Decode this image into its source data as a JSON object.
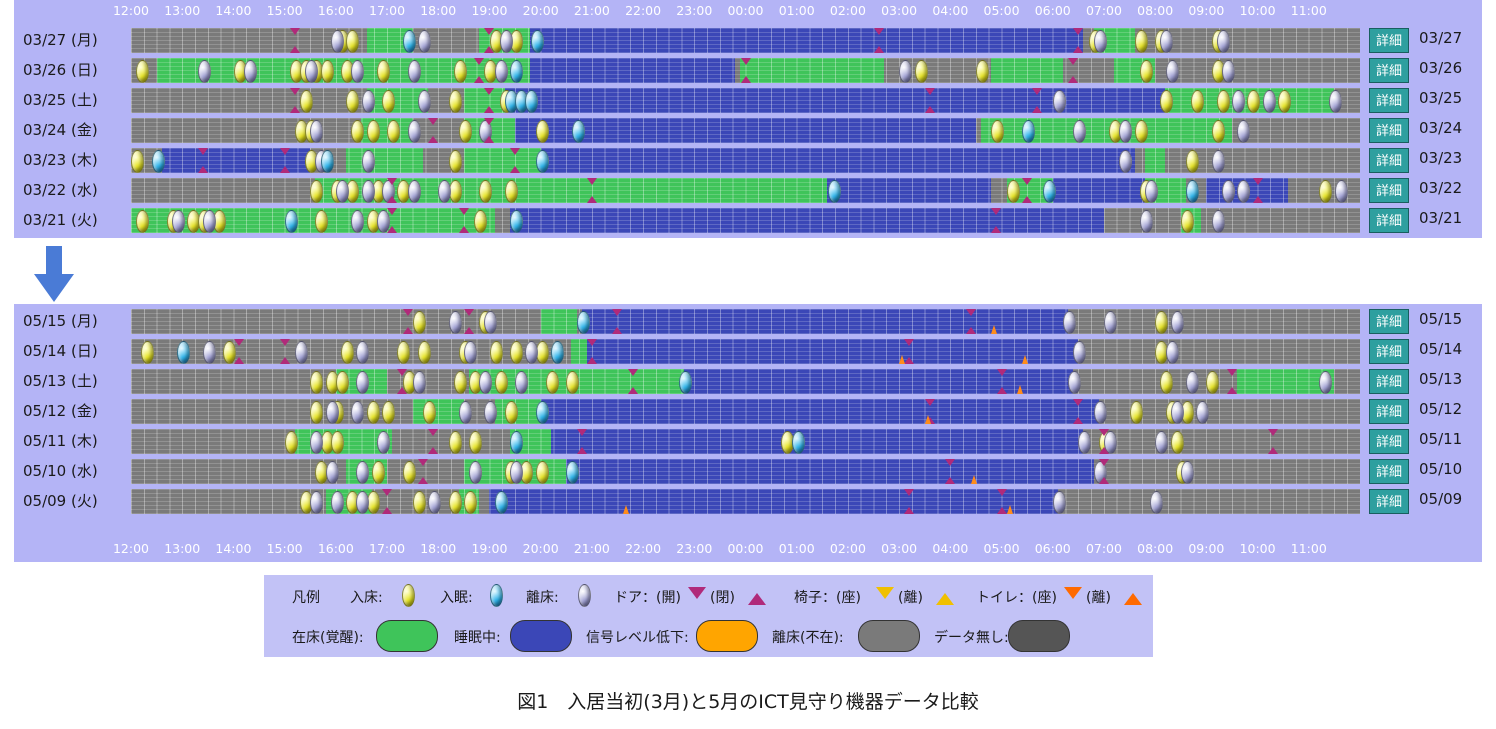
{
  "time_axis": [
    "12:00",
    "13:00",
    "14:00",
    "15:00",
    "16:00",
    "17:00",
    "18:00",
    "19:00",
    "20:00",
    "21:00",
    "22:00",
    "23:00",
    "00:00",
    "01:00",
    "02:00",
    "03:00",
    "04:00",
    "05:00",
    "06:00",
    "07:00",
    "08:00",
    "09:00",
    "10:00",
    "11:00"
  ],
  "detail_label": "詳細",
  "march_rows": [
    {
      "label": "03/27 (月)",
      "date": "03/27"
    },
    {
      "label": "03/26 (日)",
      "date": "03/26"
    },
    {
      "label": "03/25 (土)",
      "date": "03/25"
    },
    {
      "label": "03/24 (金)",
      "date": "03/24"
    },
    {
      "label": "03/23 (木)",
      "date": "03/23"
    },
    {
      "label": "03/22 (水)",
      "date": "03/22"
    },
    {
      "label": "03/21 (火)",
      "date": "03/21"
    }
  ],
  "may_rows": [
    {
      "label": "05/15 (月)",
      "date": "05/15"
    },
    {
      "label": "05/14 (日)",
      "date": "05/14"
    },
    {
      "label": "05/13 (土)",
      "date": "05/13"
    },
    {
      "label": "05/12 (金)",
      "date": "05/12"
    },
    {
      "label": "05/11 (木)",
      "date": "05/11"
    },
    {
      "label": "05/10 (水)",
      "date": "05/10"
    },
    {
      "label": "05/09 (火)",
      "date": "05/09"
    }
  ],
  "legend": {
    "title": "凡例",
    "in_bed": "入床:",
    "asleep": "入眠:",
    "left_bed": "離床:",
    "door": "ドア：(開)",
    "door_close": "(閉)",
    "chair": "椅子：(座)",
    "chair_leave": "(離)",
    "toilet": "トイレ：(座)",
    "toilet_leave": "(離)",
    "state_awake": "在床(覚醒):",
    "state_sleep": "睡眠中:",
    "state_signal": "信号レベル低下:",
    "state_absent": "離床(不在):",
    "state_nodata": "データ無し:"
  },
  "colors": {
    "awake": "#3fc45a",
    "sleep": "#3b47b7",
    "signal_low": "#ffa500",
    "absent": "#7a7a7a",
    "no_data": "#555555",
    "door": "#b02a7a",
    "chair": "#f0c000",
    "toilet": "#ff6a00"
  },
  "caption": "図1　入居当初(3月)と5月のICT見守り機器データ比較"
}
